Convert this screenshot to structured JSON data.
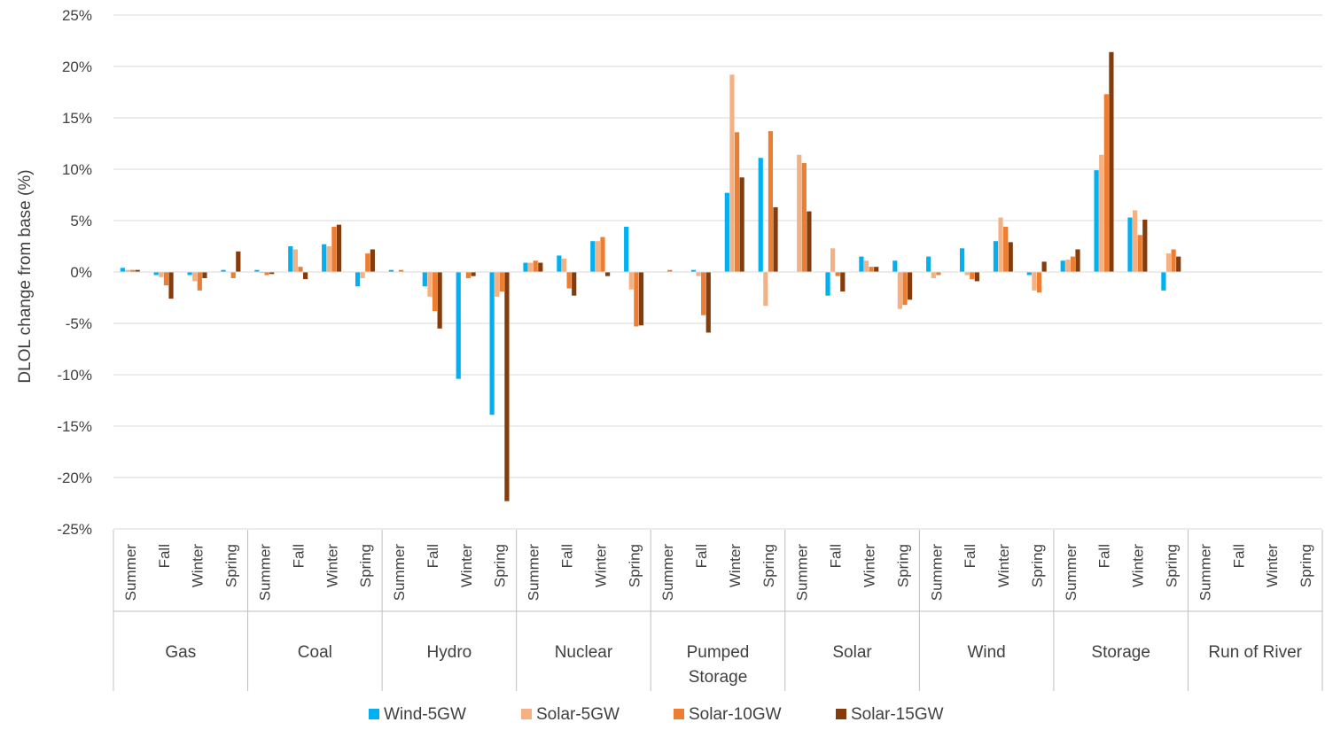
{
  "chart_data": {
    "type": "bar",
    "title": "",
    "xlabel": "",
    "ylabel": "DLOL change from base (%)",
    "ylim": [
      -25,
      25
    ],
    "yticks": [
      25,
      20,
      15,
      10,
      5,
      0,
      -5,
      -10,
      -15,
      -20,
      -25
    ],
    "ytick_labels": [
      "25%",
      "20%",
      "15%",
      "10%",
      "5%",
      "0%",
      "-5%",
      "-10%",
      "-15%",
      "-20%",
      "-25%"
    ],
    "grid": true,
    "legend_position": "bottom",
    "groups": [
      "Gas",
      "Coal",
      "Hydro",
      "Nuclear",
      "Pumped Storage",
      "Solar",
      "Wind",
      "Storage",
      "Run of River"
    ],
    "group_labels": [
      [
        "Gas"
      ],
      [
        "Coal"
      ],
      [
        "Hydro"
      ],
      [
        "Nuclear"
      ],
      [
        "Pumped",
        "Storage"
      ],
      [
        "Solar"
      ],
      [
        "Wind"
      ],
      [
        "Storage"
      ],
      [
        "Run of River"
      ]
    ],
    "seasons": [
      "Summer",
      "Fall",
      "Winter",
      "Spring"
    ],
    "series": [
      {
        "name": "Wind-5GW",
        "color": "#00B0F0",
        "values": [
          [
            0.4,
            -0.3,
            -0.3,
            0.2
          ],
          [
            0.2,
            2.5,
            2.7,
            -1.4
          ],
          [
            0.2,
            -1.4,
            -10.4,
            -13.9
          ],
          [
            0.9,
            1.6,
            3.0,
            4.4
          ],
          [
            0.0,
            0.2,
            7.7,
            11.1
          ],
          [
            0.0,
            -2.3,
            1.5,
            1.1
          ],
          [
            1.5,
            2.3,
            3.0,
            -0.3
          ],
          [
            1.1,
            9.9,
            5.3,
            -1.8
          ],
          [
            0,
            0,
            0,
            0
          ]
        ]
      },
      {
        "name": "Solar-5GW",
        "color": "#F4B183",
        "values": [
          [
            0.2,
            -0.5,
            -0.9,
            0.0
          ],
          [
            -0.1,
            2.2,
            2.5,
            -0.6
          ],
          [
            0.0,
            -2.4,
            0.0,
            -2.4
          ],
          [
            0.9,
            1.3,
            3.0,
            -1.7
          ],
          [
            0.0,
            -0.4,
            19.2,
            -3.3
          ],
          [
            11.4,
            2.3,
            1.1,
            -3.6
          ],
          [
            -0.6,
            -0.3,
            5.3,
            -1.8
          ],
          [
            1.2,
            11.4,
            6.0,
            1.8
          ],
          [
            0,
            0,
            0,
            0
          ]
        ]
      },
      {
        "name": "Solar-10GW",
        "color": "#ED7D31",
        "values": [
          [
            0.2,
            -1.3,
            -1.8,
            -0.6
          ],
          [
            -0.3,
            0.5,
            4.4,
            1.8
          ],
          [
            0.2,
            -3.8,
            -0.6,
            -1.9
          ],
          [
            1.1,
            -1.6,
            3.4,
            -5.3
          ],
          [
            0.2,
            -4.2,
            13.6,
            13.7
          ],
          [
            10.6,
            -0.4,
            0.5,
            -3.2
          ],
          [
            -0.3,
            -0.7,
            4.4,
            -2.0
          ],
          [
            1.5,
            17.3,
            3.6,
            2.2
          ],
          [
            0,
            0,
            0,
            0
          ]
        ]
      },
      {
        "name": "Solar-15GW",
        "color": "#843C0C",
        "values": [
          [
            0.2,
            -2.6,
            -0.6,
            2.0
          ],
          [
            -0.2,
            -0.7,
            4.6,
            2.2
          ],
          [
            0.0,
            -5.5,
            -0.4,
            -22.3
          ],
          [
            0.9,
            -2.3,
            -0.4,
            -5.2
          ],
          [
            0.0,
            -5.9,
            9.2,
            6.3
          ],
          [
            5.9,
            -1.9,
            0.5,
            -2.7
          ],
          [
            0.0,
            -0.9,
            2.9,
            1.0
          ],
          [
            2.2,
            21.4,
            5.1,
            1.5
          ],
          [
            0,
            0,
            0,
            0
          ]
        ]
      }
    ]
  }
}
